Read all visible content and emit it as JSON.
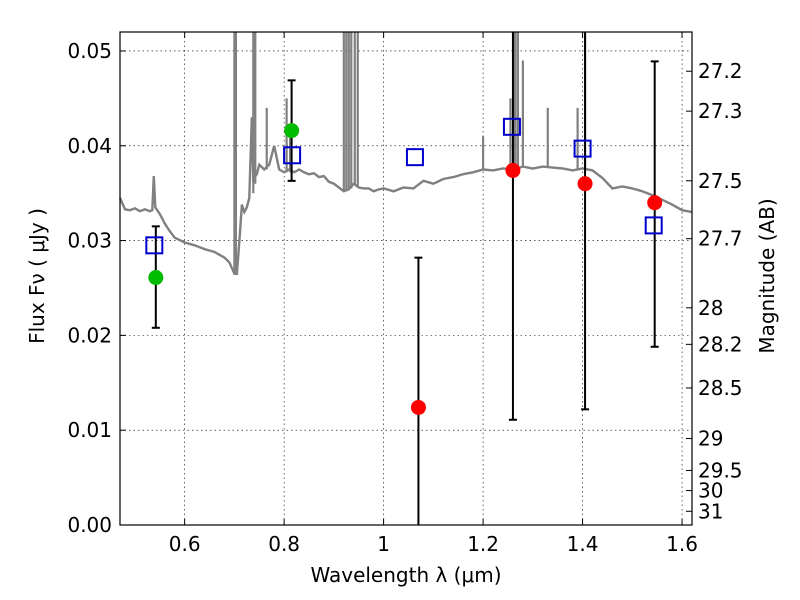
{
  "chart_data": {
    "type": "scatter",
    "title": "",
    "xlabel": "Wavelength  λ (μm)",
    "ylabel": "Flux  Fν  ( μJy )",
    "ylabel_right": "Magnitude (AB)",
    "xlim": [
      0.47,
      1.62
    ],
    "ylim": [
      0.0,
      0.052
    ],
    "grid": true,
    "x_ticks": [
      0.6,
      0.8,
      1.0,
      1.2,
      1.4,
      1.6
    ],
    "x_tick_labels": [
      "0.6",
      "0.8",
      "1",
      "1.2",
      "1.4",
      "1.6"
    ],
    "y_ticks": [
      0.0,
      0.01,
      0.02,
      0.03,
      0.04,
      0.05
    ],
    "y_tick_labels": [
      "0.00",
      "0.01",
      "0.02",
      "0.03",
      "0.04",
      "0.05"
    ],
    "mag_ticks": [
      {
        "label": "27.2",
        "mag": 27.2
      },
      {
        "label": "27.3",
        "mag": 27.3
      },
      {
        "label": "27.5",
        "mag": 27.5
      },
      {
        "label": "27.7",
        "mag": 27.7
      },
      {
        "label": "28",
        "mag": 28.0
      },
      {
        "label": "28.2",
        "mag": 28.2
      },
      {
        "label": "28.5",
        "mag": 28.5
      },
      {
        "label": "29",
        "mag": 29.0
      },
      {
        "label": "29.5",
        "mag": 29.5
      },
      {
        "label": "30",
        "mag": 30.0
      },
      {
        "label": "31",
        "mag": 31.0
      }
    ],
    "series": [
      {
        "color": "#808080",
        "kind": "line",
        "points": [
          [
            0.47,
            0.0345
          ],
          [
            0.48,
            0.0333
          ],
          [
            0.49,
            0.0332
          ],
          [
            0.5,
            0.0334
          ],
          [
            0.51,
            0.0331
          ],
          [
            0.52,
            0.0333
          ],
          [
            0.53,
            0.0331
          ],
          [
            0.535,
            0.0332
          ],
          [
            0.538,
            0.0368
          ],
          [
            0.541,
            0.0335
          ],
          [
            0.55,
            0.0328
          ],
          [
            0.56,
            0.0318
          ],
          [
            0.57,
            0.031
          ],
          [
            0.58,
            0.0303
          ],
          [
            0.6,
            0.0298
          ],
          [
            0.62,
            0.0295
          ],
          [
            0.64,
            0.0291
          ],
          [
            0.66,
            0.0288
          ],
          [
            0.68,
            0.0282
          ],
          [
            0.69,
            0.0277
          ],
          [
            0.7,
            0.0265
          ],
          [
            0.705,
            0.0265
          ],
          [
            0.71,
            0.03
          ],
          [
            0.715,
            0.0338
          ],
          [
            0.72,
            0.033
          ],
          [
            0.725,
            0.0335
          ],
          [
            0.73,
            0.0345
          ],
          [
            0.735,
            0.043
          ],
          [
            0.738,
            0.0365
          ],
          [
            0.745,
            0.037
          ],
          [
            0.75,
            0.038
          ],
          [
            0.76,
            0.0375
          ],
          [
            0.77,
            0.038
          ],
          [
            0.78,
            0.04
          ],
          [
            0.79,
            0.0375
          ],
          [
            0.8,
            0.0372
          ],
          [
            0.81,
            0.0375
          ],
          [
            0.82,
            0.0372
          ],
          [
            0.83,
            0.0375
          ],
          [
            0.84,
            0.0372
          ],
          [
            0.85,
            0.037
          ],
          [
            0.86,
            0.0371
          ],
          [
            0.87,
            0.0367
          ],
          [
            0.88,
            0.0368
          ],
          [
            0.89,
            0.0362
          ],
          [
            0.9,
            0.036
          ],
          [
            0.91,
            0.0356
          ],
          [
            0.92,
            0.0352
          ],
          [
            0.93,
            0.0354
          ],
          [
            0.94,
            0.036
          ],
          [
            0.95,
            0.0356
          ],
          [
            0.96,
            0.0355
          ],
          [
            0.97,
            0.0355
          ],
          [
            0.98,
            0.0352
          ],
          [
            0.99,
            0.0354
          ],
          [
            1.0,
            0.0355
          ],
          [
            1.02,
            0.0352
          ],
          [
            1.04,
            0.0356
          ],
          [
            1.06,
            0.0355
          ],
          [
            1.08,
            0.0363
          ],
          [
            1.1,
            0.036
          ],
          [
            1.12,
            0.0365
          ],
          [
            1.14,
            0.0367
          ],
          [
            1.16,
            0.037
          ],
          [
            1.18,
            0.0372
          ],
          [
            1.2,
            0.0375
          ],
          [
            1.22,
            0.0374
          ],
          [
            1.24,
            0.0376
          ],
          [
            1.26,
            0.0375
          ],
          [
            1.28,
            0.0378
          ],
          [
            1.3,
            0.0376
          ],
          [
            1.32,
            0.0378
          ],
          [
            1.34,
            0.0377
          ],
          [
            1.36,
            0.0376
          ],
          [
            1.38,
            0.0374
          ],
          [
            1.4,
            0.0376
          ],
          [
            1.42,
            0.0374
          ],
          [
            1.44,
            0.0366
          ],
          [
            1.46,
            0.0355
          ],
          [
            1.48,
            0.0357
          ],
          [
            1.5,
            0.0355
          ],
          [
            1.52,
            0.0352
          ],
          [
            1.54,
            0.0348
          ],
          [
            1.56,
            0.0343
          ],
          [
            1.58,
            0.0338
          ],
          [
            1.6,
            0.0332
          ],
          [
            1.62,
            0.033
          ]
        ]
      },
      {
        "color": "#808080",
        "kind": "emission-lines",
        "lines": [
          [
            0.7,
            0.0265,
            0.052
          ],
          [
            0.703,
            0.0265,
            0.052
          ],
          [
            0.738,
            0.035,
            0.052
          ],
          [
            0.742,
            0.036,
            0.052
          ],
          [
            0.765,
            0.0375,
            0.044
          ],
          [
            0.805,
            0.0372,
            0.045
          ],
          [
            0.812,
            0.0372,
            0.042
          ],
          [
            0.92,
            0.0352,
            0.052
          ],
          [
            0.925,
            0.0352,
            0.052
          ],
          [
            0.93,
            0.0354,
            0.052
          ],
          [
            0.935,
            0.0355,
            0.052
          ],
          [
            0.942,
            0.036,
            0.052
          ],
          [
            0.948,
            0.0356,
            0.052
          ],
          [
            1.2,
            0.0375,
            0.041
          ],
          [
            1.255,
            0.0375,
            0.045
          ],
          [
            1.262,
            0.0375,
            0.052
          ],
          [
            1.265,
            0.0375,
            0.052
          ],
          [
            1.27,
            0.0376,
            0.052
          ],
          [
            1.28,
            0.0378,
            0.049
          ],
          [
            1.33,
            0.0378,
            0.044
          ],
          [
            1.39,
            0.0374,
            0.044
          ],
          [
            1.405,
            0.0376,
            0.052
          ]
        ]
      },
      {
        "color": "#ff0000",
        "kind": "points",
        "x": [
          1.07,
          1.26,
          1.405,
          1.545
        ],
        "y": [
          0.0124,
          0.0374,
          0.036,
          0.034
        ]
      },
      {
        "color": "#00bb00",
        "kind": "points",
        "x": [
          0.542,
          0.815
        ],
        "y": [
          0.0261,
          0.0416
        ]
      },
      {
        "color": "#0000cc",
        "kind": "squares",
        "x": [
          0.539,
          0.816,
          1.063,
          1.258,
          1.4,
          1.543
        ],
        "y": [
          0.0295,
          0.039,
          0.0388,
          0.042,
          0.0397,
          0.0316
        ]
      },
      {
        "color": "#000000",
        "kind": "errorbars",
        "bars": [
          {
            "x": 0.542,
            "lo": 0.0208,
            "hi": 0.0315
          },
          {
            "x": 0.815,
            "lo": 0.0363,
            "hi": 0.0469
          },
          {
            "x": 1.07,
            "lo": 0.0,
            "hi": 0.0282
          },
          {
            "x": 1.26,
            "lo": 0.0111,
            "hi": 0.052
          },
          {
            "x": 1.405,
            "lo": 0.0122,
            "hi": 0.052
          },
          {
            "x": 1.545,
            "lo": 0.0188,
            "hi": 0.0489
          }
        ]
      }
    ]
  }
}
